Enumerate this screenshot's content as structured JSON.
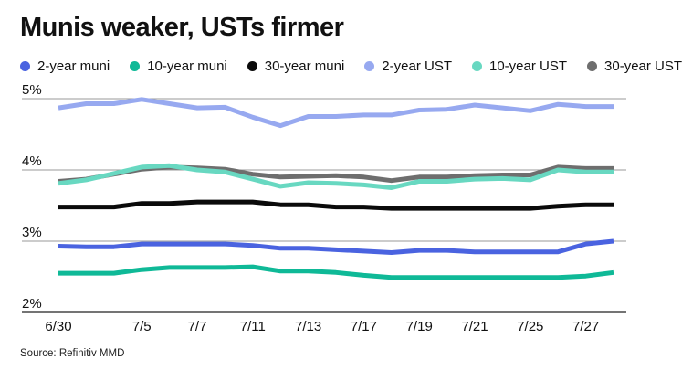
{
  "chart_data": {
    "type": "line",
    "title": "Munis weaker, USTs firmer",
    "source": "Source: Refinitiv MMD",
    "y_ticks": [
      "5%",
      "4%",
      "3%",
      "2%"
    ],
    "y_tick_values": [
      5,
      4,
      3,
      2
    ],
    "ylim": [
      2,
      5
    ],
    "x_tick_labels": [
      "6/30",
      "7/5",
      "7/7",
      "7/11",
      "7/13",
      "7/17",
      "7/19",
      "7/21",
      "7/25",
      "7/27"
    ],
    "x_tick_positions": [
      0,
      3,
      5,
      7,
      9,
      11,
      13,
      15,
      17,
      19
    ],
    "n_points": 21,
    "grid": true,
    "legend_position": "top",
    "series": [
      {
        "name": "2-year muni",
        "color": "#4a63e0",
        "values": [
          2.93,
          2.92,
          2.92,
          2.96,
          2.96,
          2.96,
          2.96,
          2.94,
          2.9,
          2.9,
          2.88,
          2.86,
          2.84,
          2.87,
          2.87,
          2.85,
          2.85,
          2.85,
          2.85,
          2.96,
          3.0
        ]
      },
      {
        "name": "10-year muni",
        "color": "#0fb997",
        "values": [
          2.55,
          2.55,
          2.55,
          2.6,
          2.63,
          2.63,
          2.63,
          2.64,
          2.58,
          2.58,
          2.56,
          2.52,
          2.49,
          2.49,
          2.49,
          2.49,
          2.49,
          2.49,
          2.49,
          2.51,
          2.56
        ]
      },
      {
        "name": "30-year muni",
        "color": "#0a0a0a",
        "values": [
          3.48,
          3.48,
          3.48,
          3.53,
          3.53,
          3.55,
          3.55,
          3.55,
          3.51,
          3.51,
          3.48,
          3.48,
          3.46,
          3.46,
          3.46,
          3.46,
          3.46,
          3.46,
          3.49,
          3.51,
          3.51
        ]
      },
      {
        "name": "2-year UST",
        "color": "#97a9f0",
        "values": [
          4.87,
          4.93,
          4.93,
          4.99,
          4.93,
          4.87,
          4.88,
          4.74,
          4.62,
          4.75,
          4.75,
          4.77,
          4.77,
          4.84,
          4.85,
          4.91,
          4.87,
          4.83,
          4.92,
          4.89,
          4.89
        ]
      },
      {
        "name": "10-year UST",
        "color": "#68d8c1",
        "values": [
          3.81,
          3.86,
          3.95,
          4.04,
          4.06,
          4.0,
          3.97,
          3.87,
          3.77,
          3.82,
          3.81,
          3.79,
          3.75,
          3.84,
          3.84,
          3.87,
          3.88,
          3.86,
          4.0,
          3.97,
          3.97
        ]
      },
      {
        "name": "30-year UST",
        "color": "#6e6e6e",
        "values": [
          3.84,
          3.87,
          3.94,
          4.01,
          4.04,
          4.03,
          4.01,
          3.94,
          3.9,
          3.91,
          3.92,
          3.9,
          3.85,
          3.9,
          3.9,
          3.92,
          3.93,
          3.93,
          4.04,
          4.02,
          4.02
        ]
      }
    ]
  }
}
